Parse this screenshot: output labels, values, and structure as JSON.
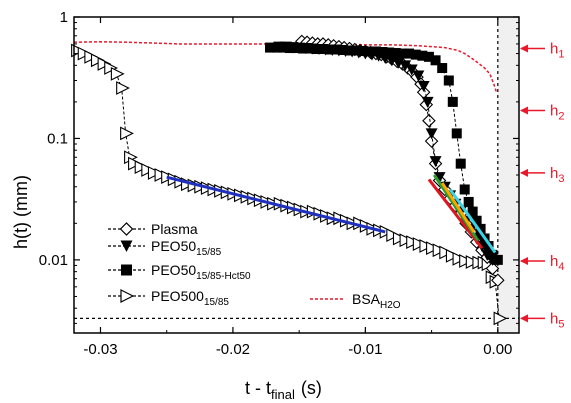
{
  "chart_data": {
    "type": "scatter",
    "xlabel_main": "t - t",
    "xlabel_sub": "final",
    "xlabel_unit": "(s)",
    "ylabel": "h(t)  (mm)",
    "xlim": [
      -0.032,
      0.0016
    ],
    "ylim": [
      0.0025,
      1.0
    ],
    "yscale": "log",
    "x_ticks": [
      -0.03,
      -0.02,
      -0.01,
      0.0
    ],
    "x_tick_labels": [
      "-0.03",
      "-0.02",
      "-0.01",
      "0.00"
    ],
    "y_ticks": [
      0.01,
      0.1,
      1
    ],
    "y_tick_labels": [
      "0.01",
      "0.1",
      "1"
    ],
    "shaded_region": [
      0.0,
      0.0016
    ],
    "vertical_dashed_line": 0.0,
    "horizontal_dashed_line": 0.0033,
    "series": [
      {
        "name": "Plasma",
        "name_sub": "",
        "marker": "diamond-open",
        "color": "#000000",
        "x": [
          -0.0148,
          -0.0144,
          -0.014,
          -0.0136,
          -0.0132,
          -0.0128,
          -0.0124,
          -0.012,
          -0.0116,
          -0.0112,
          -0.0108,
          -0.0104,
          -0.01,
          -0.0096,
          -0.0092,
          -0.0088,
          -0.0084,
          -0.008,
          -0.0076,
          -0.0072,
          -0.0068,
          -0.0064,
          -0.0061,
          -0.0058,
          -0.0056,
          -0.0054,
          -0.0052,
          -0.005,
          -0.0047,
          -0.0044,
          -0.004,
          -0.0036,
          -0.0032,
          -0.0028,
          -0.0024,
          -0.002,
          -0.0016,
          -0.0012,
          -0.0008,
          -0.0004,
          0.0
        ],
        "y": [
          0.63,
          0.62,
          0.61,
          0.6,
          0.6,
          0.59,
          0.58,
          0.57,
          0.56,
          0.55,
          0.54,
          0.53,
          0.52,
          0.51,
          0.5,
          0.49,
          0.47,
          0.45,
          0.43,
          0.41,
          0.38,
          0.35,
          0.32,
          0.28,
          0.24,
          0.19,
          0.14,
          0.095,
          0.062,
          0.045,
          0.038,
          0.032,
          0.028,
          0.024,
          0.02,
          0.017,
          0.014,
          0.012,
          0.0105,
          0.0085,
          0.0068
        ]
      },
      {
        "name": "PEO50",
        "name_sub": "15/85",
        "marker": "triangle-down-filled",
        "color": "#000000",
        "x": [
          -0.0165,
          -0.016,
          -0.0155,
          -0.015,
          -0.0145,
          -0.014,
          -0.0135,
          -0.013,
          -0.0125,
          -0.012,
          -0.0115,
          -0.011,
          -0.0105,
          -0.01,
          -0.0095,
          -0.009,
          -0.0085,
          -0.008,
          -0.0075,
          -0.007,
          -0.0065,
          -0.006,
          -0.0056,
          -0.0053,
          -0.005,
          -0.0047,
          -0.0044,
          -0.004,
          -0.0036,
          -0.0032,
          -0.0028,
          -0.0024,
          -0.002,
          -0.0016,
          -0.0012,
          -0.0008,
          -0.0004
        ],
        "y": [
          0.57,
          0.57,
          0.565,
          0.56,
          0.555,
          0.55,
          0.545,
          0.54,
          0.535,
          0.53,
          0.525,
          0.52,
          0.51,
          0.5,
          0.49,
          0.48,
          0.46,
          0.44,
          0.42,
          0.4,
          0.37,
          0.33,
          0.27,
          0.2,
          0.11,
          0.065,
          0.048,
          0.04,
          0.034,
          0.029,
          0.025,
          0.021,
          0.018,
          0.015,
          0.013,
          0.011,
          0.01
        ]
      },
      {
        "name": "PEO50",
        "name_sub": "15/85-Hct50",
        "marker": "square-filled",
        "color": "#000000",
        "x": [
          -0.0172,
          -0.0167,
          -0.0162,
          -0.0157,
          -0.0152,
          -0.0147,
          -0.0142,
          -0.0137,
          -0.0132,
          -0.0127,
          -0.0122,
          -0.0117,
          -0.0112,
          -0.0107,
          -0.0102,
          -0.0097,
          -0.0092,
          -0.0087,
          -0.0082,
          -0.0077,
          -0.0072,
          -0.0067,
          -0.0062,
          -0.0057,
          -0.0052,
          -0.0047,
          -0.0042,
          -0.0037,
          -0.0034,
          -0.0031,
          -0.0028,
          -0.0025,
          -0.0022,
          -0.0019,
          -0.0016,
          -0.0013,
          -0.001,
          -0.0007,
          -0.0004,
          0.0
        ],
        "y": [
          0.56,
          0.56,
          0.56,
          0.555,
          0.555,
          0.55,
          0.55,
          0.545,
          0.545,
          0.54,
          0.54,
          0.535,
          0.53,
          0.53,
          0.525,
          0.52,
          0.52,
          0.515,
          0.51,
          0.505,
          0.5,
          0.5,
          0.49,
          0.48,
          0.47,
          0.44,
          0.38,
          0.3,
          0.2,
          0.11,
          0.062,
          0.038,
          0.03,
          0.025,
          0.021,
          0.018,
          0.015,
          0.013,
          0.011,
          0.01
        ]
      },
      {
        "name": "PEO500",
        "name_sub": "15/85",
        "marker": "triangle-right-open",
        "color": "#000000",
        "x": [
          -0.0318,
          -0.0313,
          -0.0308,
          -0.0303,
          -0.0298,
          -0.0293,
          -0.0288,
          -0.0284,
          -0.0281,
          -0.0278,
          -0.0275,
          -0.027,
          -0.0265,
          -0.026,
          -0.0255,
          -0.025,
          -0.0245,
          -0.024,
          -0.0235,
          -0.023,
          -0.0225,
          -0.022,
          -0.0215,
          -0.021,
          -0.0205,
          -0.02,
          -0.0195,
          -0.019,
          -0.0185,
          -0.018,
          -0.0175,
          -0.017,
          -0.0165,
          -0.016,
          -0.0155,
          -0.015,
          -0.0145,
          -0.014,
          -0.0135,
          -0.013,
          -0.0125,
          -0.012,
          -0.0115,
          -0.011,
          -0.0105,
          -0.01,
          -0.0095,
          -0.009,
          -0.0085,
          -0.008,
          -0.0075,
          -0.007,
          -0.0065,
          -0.006,
          -0.0055,
          -0.005,
          -0.0045,
          -0.004,
          -0.0035,
          -0.003,
          -0.0025,
          -0.002,
          -0.0015,
          -0.0011,
          -0.0008,
          -0.0005,
          -0.0002,
          0.0001
        ],
        "y": [
          0.53,
          0.5,
          0.47,
          0.44,
          0.41,
          0.38,
          0.34,
          0.26,
          0.11,
          0.07,
          0.062,
          0.058,
          0.055,
          0.052,
          0.05,
          0.048,
          0.046,
          0.044,
          0.042,
          0.041,
          0.04,
          0.039,
          0.038,
          0.037,
          0.036,
          0.035,
          0.034,
          0.033,
          0.032,
          0.031,
          0.03,
          0.029,
          0.029,
          0.028,
          0.027,
          0.026,
          0.025,
          0.025,
          0.024,
          0.023,
          0.022,
          0.022,
          0.021,
          0.02,
          0.02,
          0.019,
          0.018,
          0.0175,
          0.017,
          0.016,
          0.015,
          0.0145,
          0.014,
          0.0135,
          0.013,
          0.0125,
          0.012,
          0.0115,
          0.0108,
          0.0102,
          0.0098,
          0.0096,
          0.0095,
          0.0095,
          0.0092,
          0.0072,
          0.0066,
          0.0033
        ]
      }
    ],
    "bsa_curve": {
      "name": "BSA",
      "name_sub": "H2O",
      "color": "#e8192c",
      "x": [
        -0.032,
        -0.03,
        -0.028,
        -0.026,
        -0.024,
        -0.022,
        -0.02,
        -0.018,
        -0.016,
        -0.014,
        -0.012,
        -0.01,
        -0.008,
        -0.006,
        -0.005,
        -0.004,
        -0.003,
        -0.0025,
        -0.002,
        -0.0015,
        -0.001,
        -0.0006,
        -0.0003,
        -0.0001
      ],
      "y": [
        0.62,
        0.625,
        0.62,
        0.61,
        0.6,
        0.6,
        0.6,
        0.6,
        0.6,
        0.6,
        0.6,
        0.59,
        0.59,
        0.58,
        0.57,
        0.56,
        0.53,
        0.5,
        0.46,
        0.42,
        0.38,
        0.34,
        0.28,
        0.24
      ]
    },
    "fit_lines": [
      {
        "color": "#1f2fbf",
        "x": [
          -0.025,
          -0.0085
        ],
        "y": [
          0.048,
          0.017
        ]
      },
      {
        "color": "#e0141e",
        "x": [
          -0.0052,
          -0.0012
        ],
        "y": [
          0.046,
          0.0125
        ]
      },
      {
        "color": "#2a9d2a",
        "x": [
          -0.0048,
          -0.0015
        ],
        "y": [
          0.05,
          0.0145
        ]
      },
      {
        "color": "#ffa500",
        "x": [
          -0.0042,
          -0.0018
        ],
        "y": [
          0.043,
          0.017
        ]
      },
      {
        "color": "#39d4e6",
        "x": [
          -0.0036,
          -0.0002
        ],
        "y": [
          0.038,
          0.0115
        ]
      }
    ],
    "h_levels": [
      {
        "label": "h",
        "sub": "1",
        "y": 0.55
      },
      {
        "label": "h",
        "sub": "2",
        "y": 0.17
      },
      {
        "label": "h",
        "sub": "3",
        "y": 0.052
      },
      {
        "label": "h",
        "sub": "4",
        "y": 0.0098
      },
      {
        "label": "h",
        "sub": "5",
        "y": 0.0033
      }
    ],
    "legend_position": "bottom-left"
  }
}
